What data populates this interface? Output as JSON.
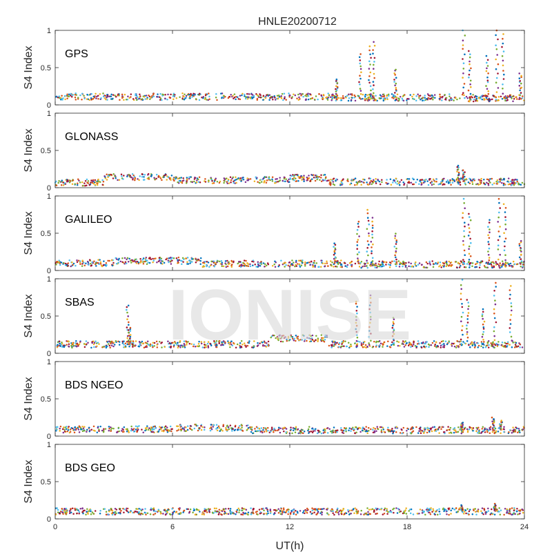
{
  "chart_data": {
    "type": "scatter",
    "title": "HNLE20200712",
    "xlabel": "UT(h)",
    "ylabel": "S4 Index",
    "xlim": [
      0,
      24
    ],
    "ylim": [
      0,
      1
    ],
    "x_ticks": [
      "0",
      "6",
      "12",
      "18",
      "24"
    ],
    "y_ticks": [
      "0",
      "0.5",
      "1"
    ],
    "watermark": "IONISE",
    "colors": [
      "#0072bd",
      "#d95319",
      "#edb120",
      "#7e2f8e",
      "#77ac30",
      "#4dbeee",
      "#a2142f"
    ],
    "panels": [
      {
        "label": "GPS",
        "baseline": 0.1,
        "segments": [
          [
            0,
            14,
            0.11
          ],
          [
            14,
            21,
            0.1
          ],
          [
            21,
            24,
            0.09
          ]
        ],
        "spikes": [
          {
            "x": 14.4,
            "y": 0.35
          },
          {
            "x": 15.6,
            "y": 0.68
          },
          {
            "x": 16.1,
            "y": 0.78
          },
          {
            "x": 16.3,
            "y": 0.85
          },
          {
            "x": 17.4,
            "y": 0.48
          },
          {
            "x": 20.9,
            "y": 1.0
          },
          {
            "x": 21.2,
            "y": 0.72
          },
          {
            "x": 22.1,
            "y": 0.65
          },
          {
            "x": 22.6,
            "y": 1.0
          },
          {
            "x": 22.9,
            "y": 0.95
          },
          {
            "x": 23.8,
            "y": 0.42
          }
        ]
      },
      {
        "label": "GLONASS",
        "baseline": 0.08,
        "segments": [
          [
            0,
            2.5,
            0.07
          ],
          [
            2.5,
            6,
            0.14
          ],
          [
            6,
            12,
            0.1
          ],
          [
            12,
            14,
            0.13
          ],
          [
            14,
            24,
            0.08
          ]
        ],
        "spikes": [
          {
            "x": 20.6,
            "y": 0.3
          },
          {
            "x": 20.9,
            "y": 0.24
          }
        ]
      },
      {
        "label": "GALILEO",
        "baseline": 0.09,
        "segments": [
          [
            0,
            3,
            0.1
          ],
          [
            3,
            7.5,
            0.13
          ],
          [
            7.5,
            15,
            0.09
          ],
          [
            15,
            24,
            0.08
          ]
        ],
        "spikes": [
          {
            "x": 14.3,
            "y": 0.36
          },
          {
            "x": 15.5,
            "y": 0.66
          },
          {
            "x": 16.0,
            "y": 0.82
          },
          {
            "x": 16.2,
            "y": 0.7
          },
          {
            "x": 17.4,
            "y": 0.5
          },
          {
            "x": 20.9,
            "y": 0.96
          },
          {
            "x": 21.2,
            "y": 0.76
          },
          {
            "x": 22.2,
            "y": 0.68
          },
          {
            "x": 22.7,
            "y": 0.96
          },
          {
            "x": 23.0,
            "y": 0.9
          },
          {
            "x": 23.8,
            "y": 0.4
          }
        ]
      },
      {
        "label": "SBAS",
        "baseline": 0.12,
        "segments": [
          [
            0,
            11,
            0.12
          ],
          [
            11,
            14,
            0.2
          ],
          [
            14,
            24,
            0.12
          ]
        ],
        "spikes": [
          {
            "x": 3.7,
            "y": 0.65
          },
          {
            "x": 3.8,
            "y": 0.35
          },
          {
            "x": 15.4,
            "y": 0.7
          },
          {
            "x": 16.1,
            "y": 0.78
          },
          {
            "x": 17.3,
            "y": 0.48
          },
          {
            "x": 20.8,
            "y": 0.98
          },
          {
            "x": 21.1,
            "y": 0.72
          },
          {
            "x": 21.9,
            "y": 0.6
          },
          {
            "x": 22.5,
            "y": 0.95
          },
          {
            "x": 23.3,
            "y": 0.9
          }
        ]
      },
      {
        "label": "BDS NGEO",
        "baseline": 0.09,
        "segments": [
          [
            0,
            6,
            0.09
          ],
          [
            6,
            10,
            0.11
          ],
          [
            10,
            24,
            0.08
          ]
        ],
        "spikes": [
          {
            "x": 20.8,
            "y": 0.18
          },
          {
            "x": 22.4,
            "y": 0.25
          },
          {
            "x": 22.8,
            "y": 0.2
          }
        ]
      },
      {
        "label": "BDS GEO",
        "baseline": 0.1,
        "segments": [
          [
            0,
            24,
            0.1
          ]
        ],
        "spikes": [
          {
            "x": 20.8,
            "y": 0.18
          },
          {
            "x": 22.5,
            "y": 0.2
          }
        ]
      }
    ]
  }
}
